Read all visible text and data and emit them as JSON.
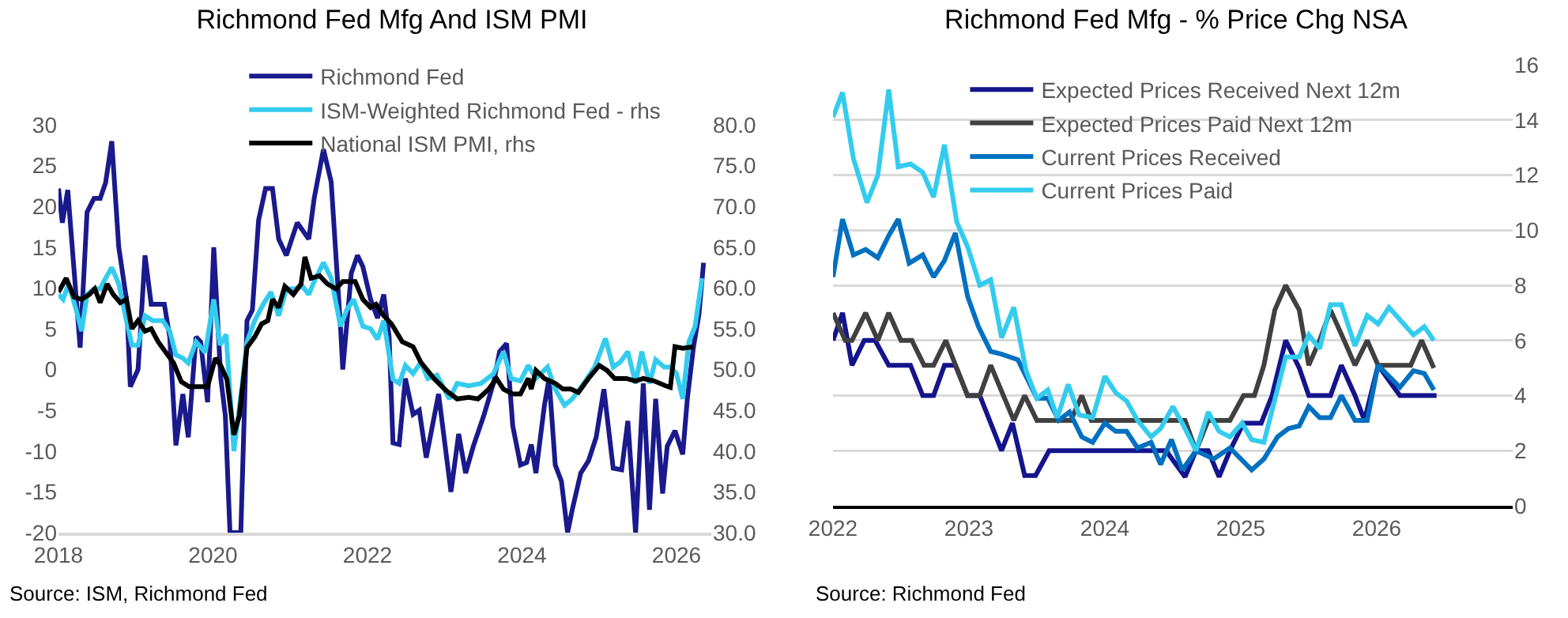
{
  "chart_data": [
    {
      "type": "line",
      "title": "Richmond Fed Mfg And ISM PMI",
      "legend": "top",
      "xlim": [
        2018,
        2026.45
      ],
      "xticks": [
        2018,
        2020,
        2022,
        2024,
        2026
      ],
      "ylim": [
        -20,
        30
      ],
      "yticks": [
        -20,
        -15,
        -10,
        -5,
        0,
        5,
        10,
        15,
        20,
        25,
        30
      ],
      "y2lim": [
        30,
        80
      ],
      "y2ticks": [
        {
          "value": 30,
          "label": "30.0"
        },
        {
          "value": 35,
          "label": "35.0"
        },
        {
          "value": 40,
          "label": "40.0"
        },
        {
          "value": 45,
          "label": "45.0"
        },
        {
          "value": 50,
          "label": "50.0"
        },
        {
          "value": 55,
          "label": "55.0"
        },
        {
          "value": 60,
          "label": "60.0"
        },
        {
          "value": 65,
          "label": "65.0"
        },
        {
          "value": 70,
          "label": "70.0"
        },
        {
          "value": 75,
          "label": "75.0"
        },
        {
          "value": 80,
          "label": "80.0"
        }
      ],
      "annotations": [
        "Source: ISM, Richmond Fed"
      ],
      "series": [
        {
          "name": "Richmond Fed",
          "color": "#1a1a8c",
          "x": [
            2018.0,
            2018.05,
            2018.12,
            2018.28,
            2018.37,
            2018.46,
            2018.54,
            2018.61,
            2018.69,
            2018.78,
            2018.88,
            2018.93,
            2019.03,
            2019.12,
            2019.2,
            2019.37,
            2019.44,
            2019.52,
            2019.61,
            2019.68,
            2019.78,
            2019.84,
            2019.93,
            2020.01,
            2020.1,
            2020.16,
            2020.22,
            2020.36,
            2020.44,
            2020.51,
            2020.59,
            2020.68,
            2020.77,
            2020.85,
            2020.95,
            2021.09,
            2021.24,
            2021.31,
            2021.43,
            2021.53,
            2021.65,
            2021.68,
            2021.79,
            2021.87,
            2021.94,
            2022.04,
            2022.13,
            2022.21,
            2022.28,
            2022.33,
            2022.41,
            2022.49,
            2022.59,
            2022.67,
            2022.76,
            2022.92,
            2023.08,
            2023.18,
            2023.27,
            2023.37,
            2023.51,
            2023.63,
            2023.71,
            2023.8,
            2023.88,
            2023.98,
            2024.06,
            2024.12,
            2024.18,
            2024.29,
            2024.35,
            2024.43,
            2024.51,
            2024.59,
            2024.65,
            2024.76,
            2024.86,
            2024.96,
            2025.06,
            2025.18,
            2025.29,
            2025.37,
            2025.47,
            2025.57,
            2025.65,
            2025.73,
            2025.82,
            2025.88,
            2025.98,
            2026.08,
            2026.14,
            2026.22,
            2026.29,
            2026.35
          ],
          "values": [
            22.2,
            18,
            22,
            2.7,
            19.3,
            21,
            21,
            22.9,
            28,
            15,
            8.6,
            -2.1,
            0,
            14,
            8,
            8,
            4,
            -9.3,
            -3,
            -8.3,
            4,
            3.4,
            -4,
            15,
            -1,
            -5.7,
            -20,
            -20,
            6,
            7.3,
            18.3,
            22.2,
            22.2,
            16,
            14,
            18,
            16,
            21,
            27,
            23,
            5.3,
            0,
            11.8,
            14,
            12.6,
            8.6,
            6.3,
            9.2,
            4,
            -9,
            -9.2,
            -1.1,
            -5.5,
            -5,
            -10.8,
            -3,
            -15,
            -7.9,
            -12.7,
            -9.4,
            -5.5,
            -1.7,
            2.2,
            3.2,
            -6.9,
            -11.7,
            -11.4,
            -9.2,
            -12.7,
            -4.4,
            -1.1,
            -11.7,
            -13.7,
            -20,
            -17.2,
            -12.7,
            -11.2,
            -8.3,
            -2.4,
            -12.1,
            -12.3,
            -6.3,
            -20,
            -1.7,
            -17.2,
            -3.6,
            -15.2,
            -9.4,
            -7.5,
            -10.4,
            -3.6,
            2.8,
            6.7,
            13.1
          ]
        },
        {
          "name": "ISM-Weighted Richmond Fed - rhs",
          "color": "#33ccee",
          "axis": "y2",
          "x": [
            2018.0,
            2018.06,
            2018.13,
            2018.23,
            2018.3,
            2018.37,
            2018.46,
            2018.54,
            2018.61,
            2018.69,
            2018.78,
            2018.88,
            2018.95,
            2019.03,
            2019.12,
            2019.22,
            2019.35,
            2019.44,
            2019.52,
            2019.61,
            2019.68,
            2019.78,
            2019.9,
            2020.01,
            2020.09,
            2020.17,
            2020.27,
            2020.37,
            2020.44,
            2020.54,
            2020.65,
            2020.75,
            2020.85,
            2020.95,
            2021.05,
            2021.16,
            2021.24,
            2021.31,
            2021.43,
            2021.53,
            2021.65,
            2021.73,
            2021.82,
            2021.94,
            2022.04,
            2022.13,
            2022.21,
            2022.33,
            2022.41,
            2022.49,
            2022.59,
            2022.69,
            2022.78,
            2022.9,
            2023.06,
            2023.16,
            2023.31,
            2023.47,
            2023.63,
            2023.76,
            2023.86,
            2023.98,
            2024.08,
            2024.18,
            2024.33,
            2024.43,
            2024.55,
            2024.65,
            2024.8,
            2024.94,
            2025.08,
            2025.18,
            2025.27,
            2025.37,
            2025.47,
            2025.55,
            2025.65,
            2025.73,
            2025.84,
            2025.92,
            2026.0,
            2026.08,
            2026.16,
            2026.24,
            2026.33
          ],
          "values": [
            59.2,
            58.6,
            60.5,
            57.3,
            54.7,
            59.2,
            59.9,
            59.9,
            61.2,
            62.5,
            60.5,
            56,
            53,
            53,
            56.6,
            56,
            56,
            54.7,
            51.8,
            51.4,
            50.8,
            53.4,
            52.1,
            58.6,
            53,
            54.3,
            40,
            47.5,
            53.4,
            56,
            58,
            59.5,
            56.6,
            59.9,
            59.9,
            60.2,
            59.2,
            60.8,
            63.1,
            61.2,
            55.3,
            57.3,
            58.6,
            55.3,
            55,
            53.7,
            56,
            48.8,
            48.3,
            50.5,
            49.5,
            50.9,
            48.9,
            49.3,
            46.4,
            48.3,
            48,
            48.3,
            49.5,
            52.2,
            48.9,
            48.6,
            50.5,
            48.9,
            50.3,
            47.6,
            45.6,
            46.4,
            48.3,
            50.3,
            53.8,
            50.3,
            50.9,
            52.2,
            48.3,
            52.2,
            48.3,
            51.2,
            50.3,
            50.3,
            49.5,
            46.4,
            53.4,
            55.3,
            61.2
          ]
        },
        {
          "name": "National ISM PMI, rhs",
          "color": "#000000",
          "axis": "y2",
          "x": [
            2018.0,
            2018.1,
            2018.2,
            2018.3,
            2018.4,
            2018.47,
            2018.54,
            2018.63,
            2018.71,
            2018.8,
            2018.88,
            2018.95,
            2019.03,
            2019.12,
            2019.2,
            2019.29,
            2019.39,
            2019.49,
            2019.59,
            2019.69,
            2019.93,
            2020.03,
            2020.1,
            2020.18,
            2020.27,
            2020.34,
            2020.44,
            2020.54,
            2020.63,
            2020.71,
            2020.77,
            2020.85,
            2020.93,
            2021.04,
            2021.14,
            2021.19,
            2021.27,
            2021.38,
            2021.48,
            2021.59,
            2021.68,
            2021.84,
            2021.94,
            2022.04,
            2022.11,
            2022.21,
            2022.31,
            2022.45,
            2022.59,
            2022.69,
            2022.86,
            2023.02,
            2023.16,
            2023.31,
            2023.43,
            2023.57,
            2023.67,
            2023.76,
            2023.88,
            2023.98,
            2024.08,
            2024.12,
            2024.18,
            2024.29,
            2024.43,
            2024.53,
            2024.63,
            2024.73,
            2024.86,
            2025.0,
            2025.1,
            2025.2,
            2025.35,
            2025.47,
            2025.57,
            2025.71,
            2025.86,
            2025.92,
            2025.98,
            2026.08,
            2026.22
          ],
          "values": [
            59.5,
            61.2,
            58.9,
            58.6,
            59.2,
            59.9,
            58.2,
            60.5,
            59.2,
            58.2,
            58.6,
            55,
            56,
            54.7,
            55,
            53.4,
            52.1,
            50.8,
            48.5,
            47.9,
            47.9,
            51.4,
            50.5,
            48.8,
            42,
            44.3,
            52.7,
            54,
            55.6,
            56,
            58.6,
            57.6,
            60.2,
            59.2,
            60.5,
            63.8,
            61.2,
            61.5,
            60.5,
            59.9,
            60.8,
            60.8,
            58.6,
            57.6,
            58,
            56.6,
            55.6,
            53.4,
            52.8,
            50.9,
            48.9,
            47.4,
            46.4,
            46.6,
            46.4,
            47.6,
            48.9,
            47.6,
            47,
            47,
            48.9,
            47.6,
            49.9,
            48.9,
            48.3,
            47.6,
            47.6,
            47.2,
            48.9,
            50.5,
            49.9,
            48.9,
            48.9,
            48.6,
            48.9,
            48.6,
            48,
            47.8,
            52.8,
            52.6,
            52.8
          ]
        }
      ]
    },
    {
      "type": "line",
      "title": "Richmond Fed Mfg - % Price Chg NSA",
      "legend": "top left",
      "grid": "y",
      "xlim": [
        2022,
        2027
      ],
      "xticks": [
        2022,
        2023,
        2024,
        2025,
        2026
      ],
      "ylim": [
        0,
        16
      ],
      "yticks": [
        0,
        2,
        4,
        6,
        8,
        10,
        12,
        14,
        16
      ],
      "annotations": [
        "Source: Richmond Fed"
      ],
      "series": [
        {
          "name": "Expected Prices Received Next 12m",
          "color": "#14148c",
          "x": [
            2022.0,
            2022.07,
            2022.14,
            2022.23,
            2022.31,
            2022.41,
            2022.57,
            2022.66,
            2022.74,
            2022.82,
            2022.9,
            2022.99,
            2023.08,
            2023.24,
            2023.32,
            2023.41,
            2023.49,
            2023.59,
            2024.45,
            2024.59,
            2024.67,
            2024.76,
            2024.84,
            2024.92,
            2025.02,
            2025.15,
            2025.23,
            2025.33,
            2025.43,
            2025.5,
            2025.66,
            2025.74,
            2025.84,
            2025.91,
            2026.01,
            2026.17,
            2026.44
          ],
          "values": [
            6,
            7,
            5.1,
            6,
            6,
            5.1,
            5.1,
            4,
            4,
            5.1,
            5.1,
            4,
            4,
            2,
            3,
            1.1,
            1.1,
            2,
            2,
            1.05,
            2,
            2,
            1.05,
            2,
            3,
            3,
            4,
            6,
            5,
            4,
            4,
            5.1,
            4,
            3.1,
            5.1,
            4,
            4
          ]
        },
        {
          "name": "Expected Prices Paid Next 12m",
          "color": "#404040",
          "x": [
            2022.0,
            2022.09,
            2022.14,
            2022.24,
            2022.33,
            2022.41,
            2022.5,
            2022.58,
            2022.67,
            2022.74,
            2022.83,
            2022.99,
            2023.08,
            2023.16,
            2023.33,
            2023.41,
            2023.5,
            2023.75,
            2023.83,
            2023.9,
            2024.59,
            2024.67,
            2024.76,
            2024.92,
            2025.02,
            2025.1,
            2025.17,
            2025.25,
            2025.33,
            2025.43,
            2025.5,
            2025.58,
            2025.66,
            2025.76,
            2025.84,
            2025.93,
            2026.01,
            2026.25,
            2026.33,
            2026.42
          ],
          "values": [
            7,
            6,
            6,
            7,
            6,
            7,
            6,
            6,
            5.1,
            5.1,
            6,
            4,
            4,
            5.1,
            3.1,
            4,
            3.1,
            3.1,
            4,
            3.1,
            3.1,
            2,
            3.1,
            3.1,
            4,
            4,
            5.1,
            7.1,
            8,
            7.1,
            5.1,
            6,
            7.1,
            6,
            5.1,
            6,
            5.1,
            5.1,
            6,
            5
          ]
        },
        {
          "name": "Current Prices Received",
          "color": "#0070c0",
          "x": [
            2022.0,
            2022.07,
            2022.15,
            2022.24,
            2022.33,
            2022.41,
            2022.48,
            2022.56,
            2022.66,
            2022.74,
            2022.82,
            2022.9,
            2022.99,
            2023.07,
            2023.16,
            2023.24,
            2023.36,
            2023.5,
            2023.58,
            2023.66,
            2023.74,
            2023.83,
            2023.91,
            2024.0,
            2024.08,
            2024.16,
            2024.24,
            2024.34,
            2024.41,
            2024.49,
            2024.57,
            2024.67,
            2024.8,
            2024.92,
            2025.0,
            2025.08,
            2025.17,
            2025.27,
            2025.35,
            2025.43,
            2025.5,
            2025.58,
            2025.66,
            2025.74,
            2025.84,
            2025.93,
            2026.01,
            2026.17,
            2026.27,
            2026.35,
            2026.42
          ],
          "values": [
            8.3,
            10.4,
            9.1,
            9.3,
            9,
            9.8,
            10.4,
            8.8,
            9.1,
            8.3,
            8.9,
            9.9,
            7.6,
            6.5,
            5.6,
            5.5,
            5.3,
            3.9,
            3.9,
            3.1,
            3.4,
            2.5,
            2.3,
            3,
            2.7,
            2.7,
            2.1,
            2.3,
            1.5,
            2.4,
            1.3,
            2,
            1.7,
            2.1,
            1.7,
            1.3,
            1.7,
            2.5,
            2.8,
            2.9,
            3.6,
            3.2,
            3.2,
            4,
            3.1,
            3.1,
            5.1,
            4.3,
            4.9,
            4.8,
            4.2
          ]
        },
        {
          "name": "Current Prices Paid",
          "color": "#33ccee",
          "x": [
            2022.0,
            2022.07,
            2022.15,
            2022.25,
            2022.33,
            2022.41,
            2022.48,
            2022.57,
            2022.66,
            2022.74,
            2022.82,
            2022.91,
            2022.99,
            2023.08,
            2023.16,
            2023.24,
            2023.33,
            2023.42,
            2023.5,
            2023.58,
            2023.65,
            2023.73,
            2023.81,
            2023.91,
            2024.0,
            2024.08,
            2024.16,
            2024.24,
            2024.34,
            2024.41,
            2024.5,
            2024.58,
            2024.67,
            2024.76,
            2024.84,
            2024.92,
            2025.01,
            2025.08,
            2025.17,
            2025.33,
            2025.43,
            2025.5,
            2025.58,
            2025.66,
            2025.74,
            2025.84,
            2025.93,
            2026.01,
            2026.09,
            2026.27,
            2026.35,
            2026.42
          ],
          "values": [
            14.1,
            15,
            12.6,
            11,
            12,
            15.1,
            12.3,
            12.4,
            12.1,
            11.2,
            13.1,
            10.3,
            9.4,
            8,
            8.2,
            6.1,
            7.2,
            4.9,
            3.9,
            4.2,
            3.2,
            4.4,
            3.3,
            3.2,
            4.7,
            4.1,
            3.8,
            3.1,
            2.5,
            2.8,
            3.6,
            2.9,
            2,
            3.4,
            2.7,
            2.5,
            3,
            2.4,
            2.3,
            5.4,
            5.4,
            6.2,
            5.7,
            7.3,
            7.3,
            5.8,
            6.9,
            6.6,
            7.2,
            6.2,
            6.5,
            6
          ]
        }
      ]
    }
  ]
}
